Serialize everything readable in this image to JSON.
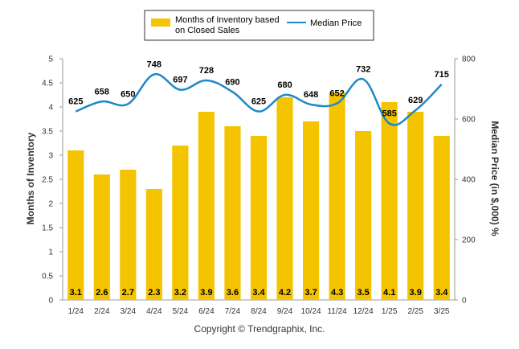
{
  "chart_data": {
    "type": "bar",
    "categories": [
      "1/24",
      "2/24",
      "3/24",
      "4/24",
      "5/24",
      "6/24",
      "7/24",
      "8/24",
      "9/24",
      "10/24",
      "11/24",
      "12/24",
      "1/25",
      "2/25",
      "3/25"
    ],
    "series": [
      {
        "name": "Months of Inventory based on Closed Sales",
        "legend_lines": [
          "Months of Inventory based",
          "on Closed Sales"
        ],
        "type": "bar",
        "axis": "left",
        "color": "#F5C400",
        "values": [
          3.1,
          2.6,
          2.7,
          2.3,
          3.2,
          3.9,
          3.6,
          3.4,
          4.2,
          3.7,
          4.3,
          3.5,
          4.1,
          3.9,
          3.4
        ],
        "labels": [
          "3.1",
          "2.6",
          "2.7",
          "2.3",
          "3.2",
          "3.9",
          "3.6",
          "3.4",
          "4.2",
          "3.7",
          "4.3",
          "3.5",
          "4.1",
          "3.9",
          "3.4"
        ]
      },
      {
        "name": "Median Price",
        "type": "line",
        "axis": "right",
        "color": "#1E88C8",
        "values": [
          625,
          658,
          650,
          748,
          697,
          728,
          690,
          625,
          680,
          648,
          652,
          732,
          585,
          629,
          715
        ],
        "labels": [
          "625",
          "658",
          "650",
          "748",
          "697",
          "728",
          "690",
          "625",
          "680",
          "648",
          "652",
          "732",
          "585",
          "629",
          "715"
        ]
      }
    ],
    "y_left": {
      "label": "Months of Inventory",
      "ylim": [
        0,
        5
      ],
      "ticks": [
        0,
        0.5,
        1,
        1.5,
        2,
        2.5,
        3,
        3.5,
        4,
        4.5,
        5
      ],
      "tick_labels": [
        "0",
        "0.5",
        "1",
        "1.5",
        "2",
        "2.5",
        "3",
        "3.5",
        "4",
        "4.5",
        "5"
      ]
    },
    "y_right": {
      "label": "Median Price (in $,000) %",
      "ylim": [
        0,
        800
      ],
      "ticks": [
        0,
        200,
        400,
        600,
        800
      ],
      "tick_labels": [
        "0",
        "200",
        "400",
        "600",
        "800"
      ]
    },
    "legend_placement": "top-center",
    "grid": false
  },
  "footer": {
    "copyright": "Copyright © Trendgraphix, Inc."
  }
}
